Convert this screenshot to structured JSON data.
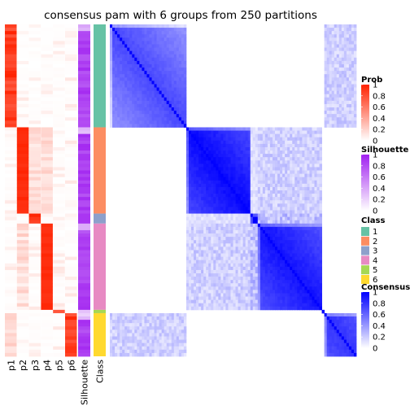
{
  "chart_data": {
    "type": "heatmap",
    "title": "consensus pam with 6 groups from 250 partitions",
    "columns": [
      "p1",
      "p2",
      "p3",
      "p4",
      "p5",
      "p6",
      "Silhouette",
      "Class"
    ],
    "group_sizes": [
      31,
      26,
      3,
      26,
      1,
      13
    ],
    "class_colors": [
      "#66C2A5",
      "#FC8D62",
      "#8DA0CB",
      "#E78AC3",
      "#A6D854",
      "#FFD92F"
    ],
    "legends": {
      "prob": {
        "title": "Prob",
        "labels": [
          "1",
          "0.8",
          "0.6",
          "0.4",
          "0.2",
          "0"
        ],
        "low": "#ffffff",
        "high": "#ff2200"
      },
      "silhouette": {
        "title": "Silhouette",
        "labels": [
          "1",
          "0.8",
          "0.6",
          "0.4",
          "0.2",
          "0"
        ],
        "low": "#ffffff",
        "high": "#a020f0"
      },
      "class": {
        "title": "Class",
        "labels": [
          "1",
          "2",
          "3",
          "4",
          "5",
          "6"
        ]
      },
      "consensus": {
        "title": "Consensus",
        "labels": [
          "1",
          "0.8",
          "0.6",
          "0.4",
          "0.2",
          "0"
        ],
        "low": "#ffffff",
        "high": "#0000ff"
      }
    }
  }
}
